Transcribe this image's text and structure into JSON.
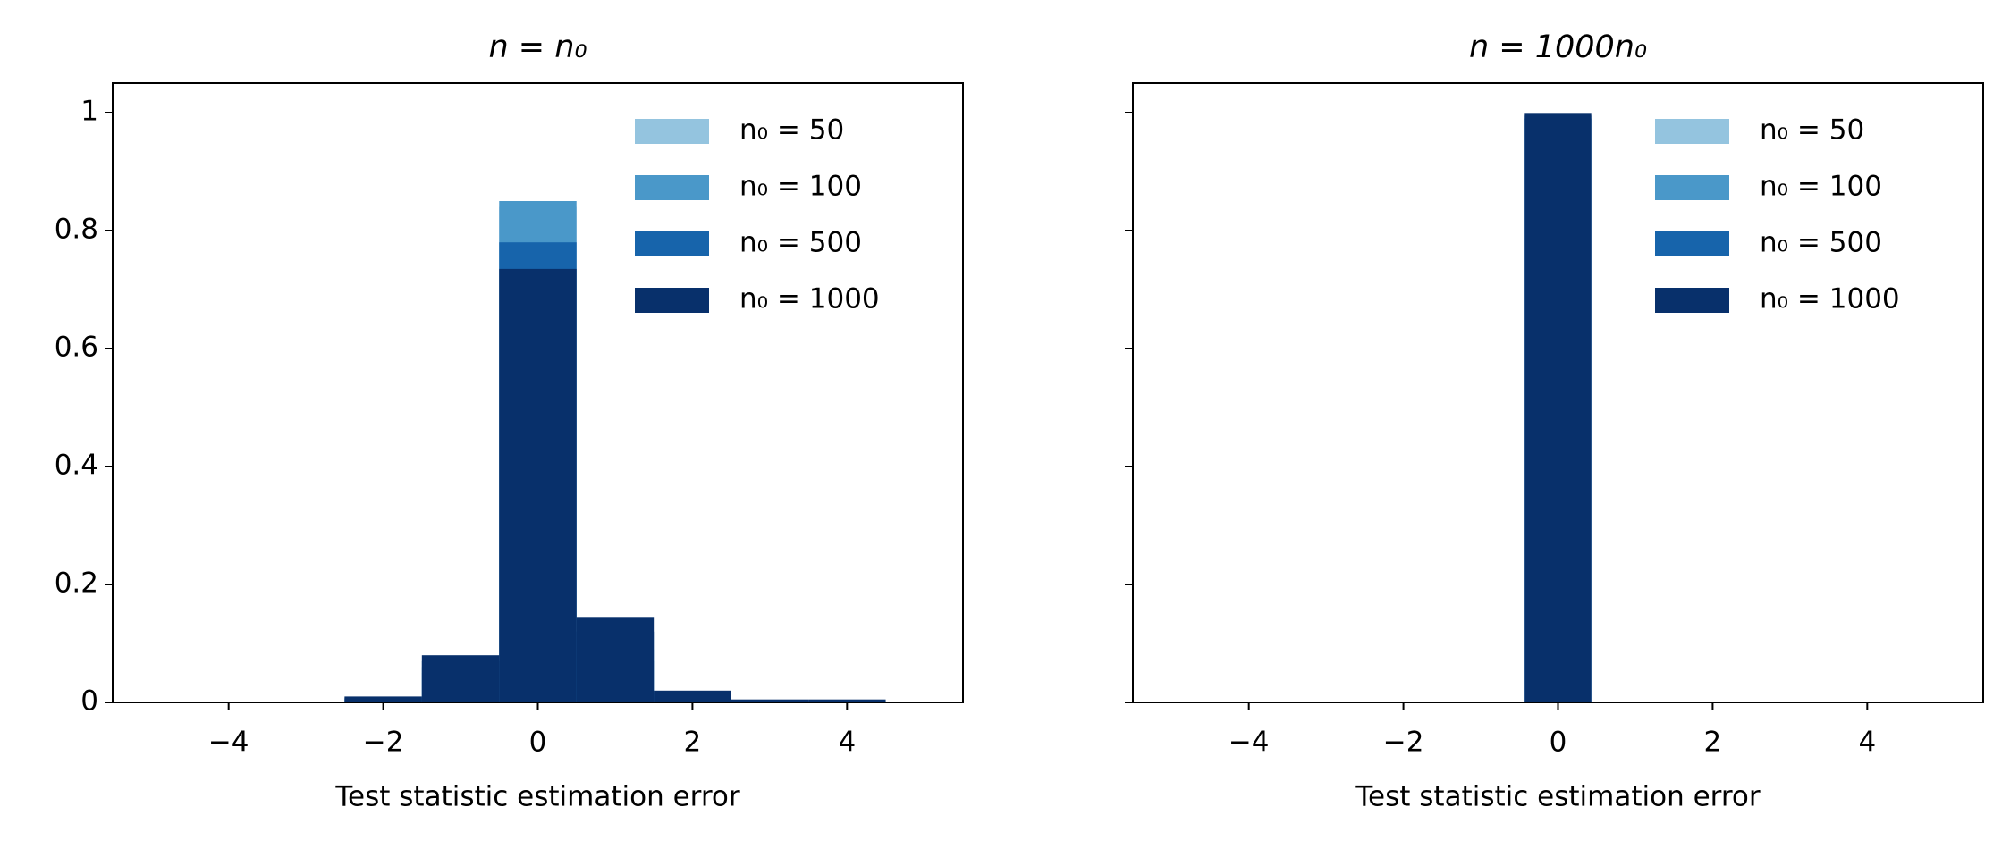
{
  "chart_data": [
    {
      "type": "histogram",
      "title": "n = n₀",
      "xlabel": "Test statistic estimation error",
      "bins": [
        -4.5,
        -3.5,
        -2.5,
        -1.5,
        -0.5,
        0.5,
        1.5,
        2.5,
        3.5,
        4.5
      ],
      "series": [
        {
          "name": "n₀ = 50",
          "color": "#94c4df",
          "values": [
            0,
            0,
            0.005,
            0.05,
            0.84,
            0.09,
            0.01,
            0.003,
            0.002
          ]
        },
        {
          "name": "n₀ = 100",
          "color": "#4a98c9",
          "values": [
            0,
            0,
            0.006,
            0.06,
            0.85,
            0.07,
            0.01,
            0.002,
            0.002
          ]
        },
        {
          "name": "n₀ = 500",
          "color": "#1764ab",
          "values": [
            0,
            0,
            0.008,
            0.07,
            0.78,
            0.12,
            0.017,
            0.003,
            0.002
          ]
        },
        {
          "name": "n₀ = 1000",
          "color": "#08306b",
          "values": [
            0,
            0,
            0.01,
            0.08,
            0.735,
            0.145,
            0.02,
            0.005,
            0.005
          ]
        }
      ],
      "xlim": [
        -5.5,
        5.5
      ],
      "ylim": [
        0,
        1.05
      ],
      "xticks": [
        {
          "value": -4,
          "label": "−4"
        },
        {
          "value": -2,
          "label": "−2"
        },
        0,
        2,
        4
      ],
      "yticks": [
        0,
        0.2,
        0.4,
        0.6,
        0.8,
        1.0
      ],
      "ytick_labels": true,
      "legend": "upper right"
    },
    {
      "type": "histogram",
      "title": "n = 1000n₀",
      "xlabel": "Test statistic estimation error",
      "bins": [
        -0.43,
        0.43
      ],
      "series": [
        {
          "name": "n₀ = 50",
          "color": "#94c4df",
          "values": [
            0.99
          ]
        },
        {
          "name": "n₀ = 100",
          "color": "#4a98c9",
          "values": [
            0.99
          ]
        },
        {
          "name": "n₀ = 500",
          "color": "#1764ab",
          "values": [
            0.995
          ]
        },
        {
          "name": "n₀ = 1000",
          "color": "#08306b",
          "values": [
            0.998
          ]
        }
      ],
      "xlim": [
        -5.5,
        5.5
      ],
      "ylim": [
        0,
        1.05
      ],
      "xticks": [
        {
          "value": -4,
          "label": "−4"
        },
        {
          "value": -2,
          "label": "−2"
        },
        0,
        2,
        4
      ],
      "yticks": [
        0,
        0.2,
        0.4,
        0.6,
        0.8,
        1.0
      ],
      "ytick_labels": false,
      "legend": "upper right"
    }
  ]
}
